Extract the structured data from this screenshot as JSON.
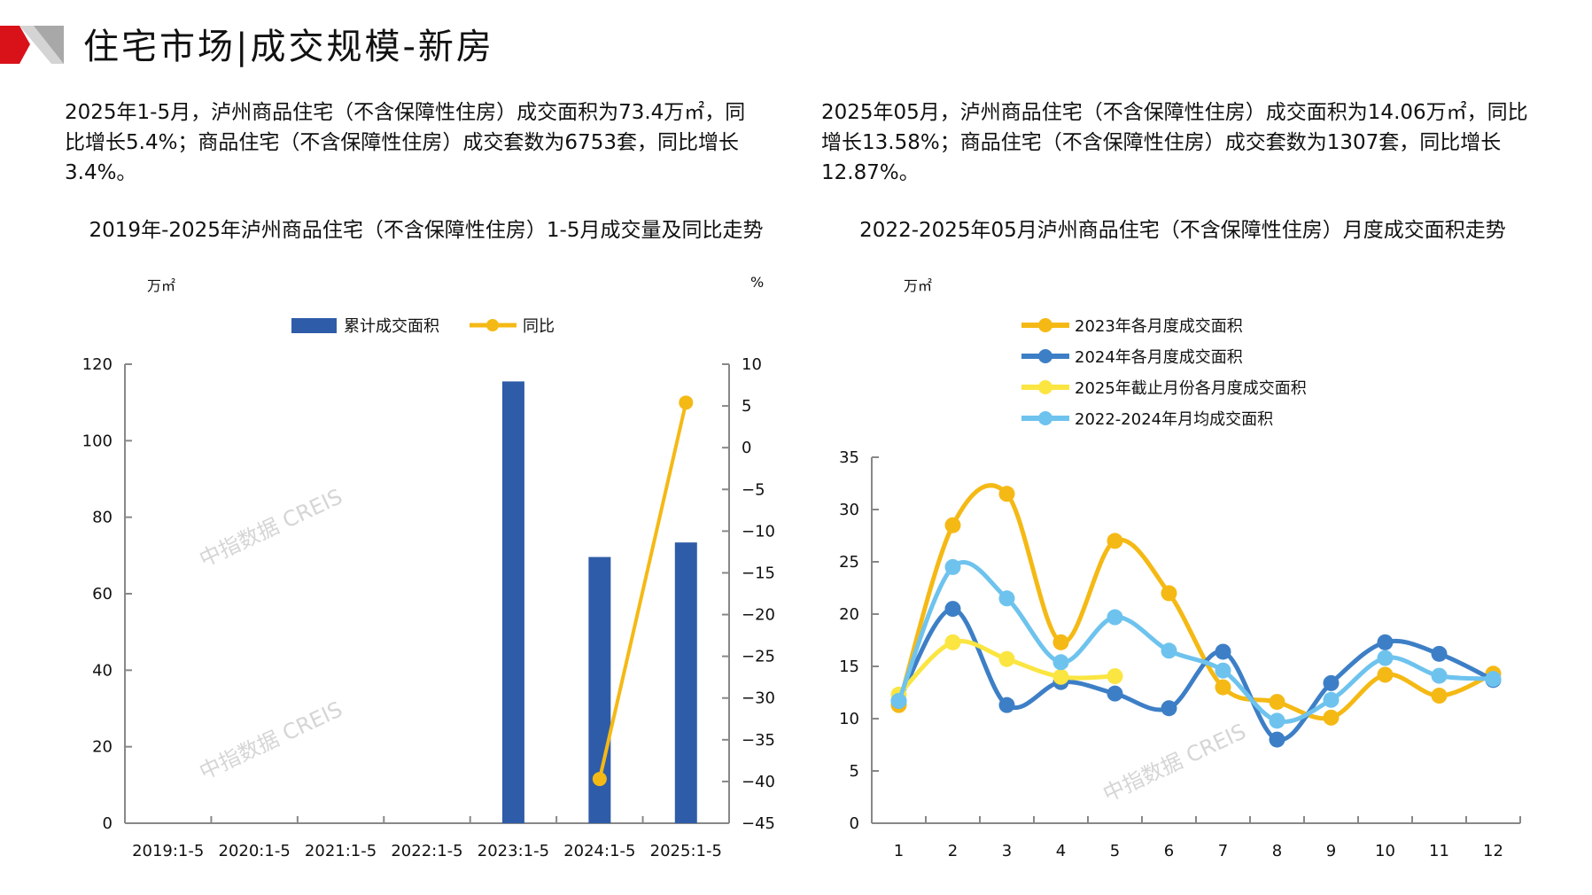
{
  "header": {
    "title": "住宅市场|成交规模-新房"
  },
  "watermark": "中指数据 CREIS",
  "paragraphs": {
    "left": "2025年1-5月，泸州商品住宅（不含保障性住房）成交面积为73.4万㎡，同比增长5.4%；商品住宅（不含保障性住房）成交套数为6753套，同比增长3.4%。",
    "right": "2025年05月，泸州商品住宅（不含保障性住房）成交面积为14.06万㎡，同比增长13.58%；商品住宅（不含保障性住房）成交套数为1307套，同比增长12.87%。"
  },
  "chart_data": [
    {
      "type": "bar+line",
      "title": "2019年-2025年泸州商品住宅（不含保障性住房）1-5月成交量及同比走势",
      "ylabel": "万㎡",
      "y2label": "%",
      "categories": [
        "2019:1-5",
        "2020:1-5",
        "2021:1-5",
        "2022:1-5",
        "2023:1-5",
        "2024:1-5",
        "2025:1-5"
      ],
      "ylim": [
        0,
        120
      ],
      "yticks": [
        0,
        20,
        40,
        60,
        80,
        100,
        120
      ],
      "y2lim": [
        -45,
        10
      ],
      "y2ticks": [
        10,
        5,
        0,
        -5,
        -10,
        -15,
        -20,
        -25,
        -30,
        -35,
        -40,
        -45
      ],
      "legend_position": "top",
      "grid": false,
      "series": [
        {
          "name": "累计成交面积",
          "kind": "bar",
          "axis": "left",
          "color": "#2f5ca8",
          "values": [
            null,
            null,
            null,
            null,
            115.5,
            69.6,
            73.4
          ]
        },
        {
          "name": "同比",
          "kind": "line",
          "axis": "right",
          "color": "#f5b915",
          "values": [
            null,
            null,
            null,
            null,
            null,
            -39.7,
            5.4
          ]
        }
      ]
    },
    {
      "type": "line",
      "title": "2022-2025年05月泸州商品住宅（不含保障性住房）月度成交面积走势",
      "ylabel": "万㎡",
      "categories": [
        "1",
        "2",
        "3",
        "4",
        "5",
        "6",
        "7",
        "8",
        "9",
        "10",
        "11",
        "12"
      ],
      "ylim": [
        0,
        35
      ],
      "yticks": [
        0,
        5,
        10,
        15,
        20,
        25,
        30,
        35
      ],
      "legend_position": "top",
      "grid": false,
      "series": [
        {
          "name": "2023年各月度成交面积",
          "color": "#f5b915",
          "values": [
            11.3,
            28.5,
            31.5,
            17.3,
            27.0,
            22.0,
            13.0,
            11.6,
            10.1,
            14.2,
            12.2,
            14.3
          ]
        },
        {
          "name": "2024年各月度成交面积",
          "color": "#3d7fc6",
          "values": [
            11.7,
            20.5,
            11.3,
            13.5,
            12.4,
            11.0,
            16.4,
            8.0,
            13.4,
            17.3,
            16.2,
            13.7
          ]
        },
        {
          "name": "2025年截止月份各月度成交面积",
          "color": "#fbe541",
          "values": [
            12.3,
            17.3,
            15.7,
            14.0,
            14.06,
            null,
            null,
            null,
            null,
            null,
            null,
            null
          ]
        },
        {
          "name": "2022-2024年月均成交面积",
          "color": "#6ec3ee",
          "values": [
            11.7,
            24.5,
            21.5,
            15.4,
            19.7,
            16.5,
            14.6,
            9.8,
            11.8,
            15.8,
            14.1,
            13.8
          ]
        }
      ]
    }
  ]
}
